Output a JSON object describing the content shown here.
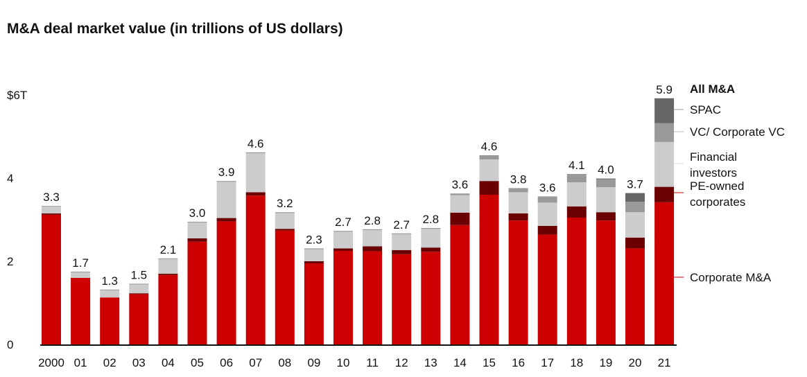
{
  "chart_data": {
    "type": "bar",
    "stacked": true,
    "title": "M&A deal market value (in trillions of US dollars)",
    "xlabel": "",
    "ylabel": "",
    "ylim": [
      0,
      6
    ],
    "yticks": [
      {
        "value": 0,
        "label": "0"
      },
      {
        "value": 2,
        "label": "2"
      },
      {
        "value": 4,
        "label": "4"
      },
      {
        "value": 6,
        "label": "$6T"
      }
    ],
    "grid": false,
    "legend_placement": "right",
    "legend_title": "All M&A",
    "categories": [
      "2000",
      "01",
      "02",
      "03",
      "04",
      "05",
      "06",
      "07",
      "08",
      "09",
      "10",
      "11",
      "12",
      "13",
      "14",
      "15",
      "16",
      "17",
      "18",
      "19",
      "20",
      "21"
    ],
    "totals": [
      "3.3",
      "1.7",
      "1.3",
      "1.5",
      "2.1",
      "3.0",
      "3.9",
      "4.6",
      "3.2",
      "2.3",
      "2.7",
      "2.8",
      "2.7",
      "2.8",
      "3.6",
      "4.6",
      "3.8",
      "3.6",
      "4.1",
      "4.0",
      "3.7",
      "5.9"
    ],
    "series": [
      {
        "name": "Corporate M&A",
        "color": "#cc0000",
        "values": [
          3.12,
          1.6,
          1.13,
          1.21,
          1.67,
          2.47,
          2.96,
          3.58,
          2.74,
          1.95,
          2.25,
          2.24,
          2.17,
          2.23,
          2.87,
          3.6,
          2.98,
          2.64,
          3.05,
          2.98,
          2.31,
          3.42
        ]
      },
      {
        "name": "PE-owned corporates",
        "color": "#6b0000",
        "values": [
          0.03,
          0.0,
          0.0,
          0.02,
          0.03,
          0.08,
          0.08,
          0.08,
          0.04,
          0.05,
          0.06,
          0.12,
          0.1,
          0.1,
          0.3,
          0.33,
          0.17,
          0.21,
          0.27,
          0.2,
          0.26,
          0.37
        ]
      },
      {
        "name": "Financial investors",
        "color": "#cccccc",
        "values": [
          0.17,
          0.14,
          0.18,
          0.22,
          0.36,
          0.39,
          0.87,
          0.94,
          0.38,
          0.29,
          0.4,
          0.39,
          0.38,
          0.45,
          0.42,
          0.52,
          0.51,
          0.56,
          0.58,
          0.6,
          0.61,
          1.08
        ]
      },
      {
        "name": "VC/ Corporate VC",
        "color": "#999999",
        "values": [
          0.01,
          0.01,
          0.01,
          0.01,
          0.01,
          0.01,
          0.02,
          0.02,
          0.02,
          0.02,
          0.02,
          0.02,
          0.02,
          0.02,
          0.04,
          0.1,
          0.1,
          0.15,
          0.2,
          0.19,
          0.25,
          0.45
        ]
      },
      {
        "name": "SPAC",
        "color": "#666666",
        "values": [
          0,
          0,
          0,
          0,
          0,
          0,
          0,
          0,
          0,
          0,
          0,
          0,
          0,
          0,
          0,
          0,
          0,
          0,
          0,
          0.02,
          0.21,
          0.6
        ]
      }
    ],
    "legend_labels": [
      {
        "series": "SPAC",
        "lines": [
          "SPAC"
        ]
      },
      {
        "series": "VC/ Corporate VC",
        "lines": [
          "VC/ Corporate VC"
        ]
      },
      {
        "series": "Financial investors",
        "lines": [
          "Financial",
          "investors"
        ]
      },
      {
        "series": "PE-owned corporates",
        "lines": [
          "PE-owned",
          "corporates"
        ]
      },
      {
        "series": "Corporate M&A",
        "lines": [
          "Corporate M&A"
        ]
      }
    ]
  }
}
